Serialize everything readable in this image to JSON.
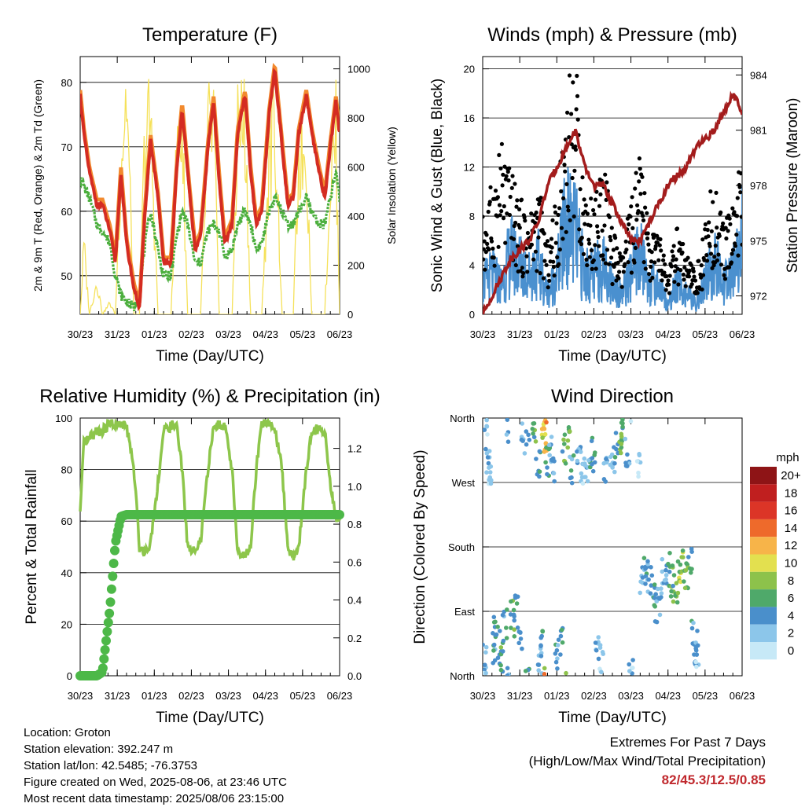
{
  "x_ticks": [
    "30/23",
    "31/23",
    "01/23",
    "02/23",
    "03/23",
    "04/23",
    "05/23",
    "06/23"
  ],
  "panels": {
    "temperature": {
      "title": "Temperature (F)",
      "xlabel": "Time (Day/UTC)",
      "ylabel": "2m & 9m T (Red, Orange) & 2m Td (Green)",
      "y2label": "Solar Insolation (Yellow)",
      "y_ticks": [
        "50",
        "60",
        "70",
        "80"
      ],
      "y2_ticks": [
        "0",
        "200",
        "400",
        "600",
        "800",
        "1000"
      ]
    },
    "winds": {
      "title": "Winds (mph) & Pressure (mb)",
      "xlabel": "Time (Day/UTC)",
      "ylabel": "Sonic Wind & Gust (Blue, Black)",
      "y2label": "Station Pressure (Maroon)",
      "y_ticks": [
        "0",
        "4",
        "8",
        "12",
        "16",
        "20"
      ],
      "y2_ticks": [
        "972",
        "975",
        "978",
        "981",
        "984"
      ]
    },
    "humidity": {
      "title": "Relative Humidity (%) & Precipitation (in)",
      "xlabel": "Time (Day/UTC)",
      "ylabel": "Percent & Total Rainfall",
      "y_ticks": [
        "0",
        "20",
        "40",
        "60",
        "80",
        "100"
      ],
      "y2_ticks": [
        "0.0",
        "0.2",
        "0.4",
        "0.6",
        "0.8",
        "1.0",
        "1.2"
      ]
    },
    "direction": {
      "title": "Wind Direction",
      "xlabel": "Time (Day/UTC)",
      "ylabel": "Direction (Colored By Speed)",
      "y_ticks": [
        "North",
        "East",
        "South",
        "West",
        "North"
      ],
      "legend_title": "mph",
      "legend_labels": [
        "0",
        "2",
        "4",
        "6",
        "8",
        "10",
        "12",
        "14",
        "16",
        "18",
        "20+"
      ],
      "legend_colors": [
        "#c7e9f7",
        "#8cc6ea",
        "#4a8fcb",
        "#4fa96a",
        "#8dc24b",
        "#e3e04f",
        "#f7b449",
        "#ee6a2b",
        "#dc3527",
        "#c01f1f",
        "#8e1416"
      ]
    }
  },
  "station": {
    "location": "Location: Groton",
    "elevation": "Station elevation: 392.247 m",
    "latlon": "Station lat/lon: 42.5485; -76.3753",
    "created": "Figure created on Wed, 2025-08-06, at 23:46 UTC",
    "recent": "Most recent data timestamp: 2025/08/06 23:15:00"
  },
  "extremes": {
    "heading": "Extremes For Past 7 Days",
    "subheading": "(High/Low/Max Wind/Total Precipitation)",
    "values": "82/45.3/12.5/0.85"
  },
  "colors": {
    "temp_2m": "#d42c22",
    "temp_9m": "#f28a2e",
    "dewpoint": "#4caf3e",
    "solar": "#f5e15a",
    "wind": "#4a90cf",
    "gust": "#000000",
    "pressure": "#a31c1c",
    "humidity": "#8dc64b",
    "rain": "#4db848"
  },
  "chart_data": [
    {
      "type": "line",
      "title": "Temperature (F)",
      "x_unit": "day (0 = 30/23 ... 7 = 06/23)",
      "x": [
        0,
        0.1,
        0.25,
        0.45,
        0.6,
        0.8,
        0.95,
        1.1,
        1.25,
        1.45,
        1.6,
        1.75,
        1.9,
        2.1,
        2.25,
        2.45,
        2.6,
        2.75,
        2.9,
        3.1,
        3.25,
        3.45,
        3.6,
        3.75,
        3.9,
        4.1,
        4.25,
        4.45,
        4.6,
        4.75,
        4.9,
        5.1,
        5.25,
        5.45,
        5.6,
        5.75,
        5.9,
        6.1,
        6.25,
        6.45,
        6.6,
        6.75,
        6.9,
        7
      ],
      "series": [
        {
          "name": "2m T",
          "values": [
            78,
            72,
            66,
            61,
            61,
            57,
            52,
            66,
            55,
            48,
            45,
            60,
            71,
            62,
            52,
            52,
            66,
            76,
            66,
            54,
            56,
            70,
            77,
            65,
            55,
            58,
            72,
            78,
            66,
            58,
            60,
            75,
            82,
            70,
            61,
            62,
            72,
            78,
            72,
            66,
            62,
            70,
            77,
            72
          ]
        },
        {
          "name": "2m Td",
          "values": [
            65,
            64,
            62,
            58,
            57,
            55,
            50,
            47,
            46,
            45,
            47,
            55,
            60,
            54,
            50,
            50,
            56,
            60,
            58,
            52,
            52,
            57,
            58,
            57,
            53,
            54,
            58,
            60,
            58,
            54,
            55,
            60,
            62,
            60,
            58,
            58,
            60,
            62,
            60,
            58,
            58,
            62,
            66,
            62
          ]
        },
        {
          "name": "Solar Insolation",
          "values": [
            0,
            300,
            0,
            150,
            0,
            50,
            0,
            700,
            1000,
            0,
            0,
            800,
            850,
            0,
            0,
            0,
            700,
            850,
            0,
            0,
            0,
            800,
            850,
            0,
            0,
            0,
            850,
            850,
            0,
            0,
            0,
            700,
            880,
            0,
            0,
            0,
            700,
            750,
            0,
            0,
            0,
            600,
            800,
            0
          ]
        }
      ],
      "ylim": [
        44,
        84
      ],
      "y2lim": [
        0,
        1050
      ]
    },
    {
      "type": "line",
      "title": "Winds (mph) & Pressure (mb)",
      "x_unit": "day (0 = 30/23 ... 7 = 06/23)",
      "x": [
        0,
        0.25,
        0.5,
        0.75,
        1,
        1.25,
        1.5,
        1.75,
        2,
        2.25,
        2.5,
        2.75,
        3,
        3.25,
        3.5,
        3.75,
        4,
        4.25,
        4.5,
        4.75,
        5,
        5.25,
        5.5,
        5.75,
        6,
        6.25,
        6.5,
        6.75,
        7
      ],
      "series": [
        {
          "name": "Sonic Wind",
          "values": [
            3,
            4,
            3,
            6,
            5,
            4,
            5,
            2,
            4,
            9,
            8,
            4,
            4,
            5,
            3,
            2,
            4,
            6,
            3,
            3,
            1,
            3,
            2,
            1,
            3,
            5,
            3,
            4,
            8
          ]
        },
        {
          "name": "Gust",
          "values": [
            7,
            9,
            12,
            10,
            8,
            7,
            9,
            5,
            8,
            16,
            18,
            9,
            8,
            11,
            6,
            4,
            8,
            11,
            6,
            6,
            3,
            6,
            4,
            3,
            6,
            10,
            6,
            8,
            13
          ]
        },
        {
          "name": "Station Pressure",
          "values": [
            971,
            972,
            973,
            974,
            974.5,
            975,
            976,
            978,
            979,
            980,
            981,
            979,
            978,
            978,
            977,
            976,
            975,
            975,
            976,
            977,
            978,
            978.5,
            979,
            980,
            980.5,
            981,
            982,
            983,
            982
          ]
        }
      ],
      "ylim": [
        0,
        21
      ],
      "y2lim": [
        971,
        985
      ]
    },
    {
      "type": "line",
      "title": "Relative Humidity (%) & Precipitation (in)",
      "x_unit": "day (0 = 30/23 ... 7 = 06/23)",
      "x": [
        0,
        0.1,
        0.25,
        0.45,
        0.6,
        0.8,
        0.95,
        1.1,
        1.25,
        1.45,
        1.6,
        1.75,
        1.9,
        2.1,
        2.25,
        2.45,
        2.6,
        2.75,
        2.9,
        3.1,
        3.25,
        3.45,
        3.6,
        3.75,
        3.9,
        4.1,
        4.25,
        4.45,
        4.6,
        4.75,
        4.9,
        5.1,
        5.25,
        5.45,
        5.6,
        5.75,
        5.9,
        6.1,
        6.25,
        6.45,
        6.6,
        6.75,
        6.9,
        7
      ],
      "series": [
        {
          "name": "Relative Humidity",
          "values": [
            63,
            90,
            92,
            95,
            95,
            98,
            97,
            97,
            97,
            80,
            50,
            48,
            52,
            75,
            95,
            97,
            97,
            80,
            50,
            48,
            52,
            80,
            97,
            98,
            97,
            80,
            48,
            46,
            50,
            80,
            98,
            98,
            96,
            80,
            50,
            46,
            50,
            80,
            95,
            96,
            95,
            75,
            60,
            62
          ]
        },
        {
          "name": "Total Rainfall",
          "values": [
            0,
            0,
            0,
            0,
            0.02,
            0.35,
            0.7,
            0.84,
            0.85,
            0.85,
            0.85,
            0.85,
            0.85,
            0.85,
            0.85,
            0.85,
            0.85,
            0.85,
            0.85,
            0.85,
            0.85,
            0.85,
            0.85,
            0.85,
            0.85,
            0.85,
            0.85,
            0.85,
            0.85,
            0.85,
            0.85,
            0.85,
            0.85,
            0.85,
            0.85,
            0.85,
            0.85,
            0.85,
            0.85,
            0.85,
            0.85,
            0.85,
            0.85,
            0.85
          ]
        }
      ],
      "ylim": [
        0,
        100
      ],
      "y2lim": [
        0,
        1.36
      ]
    },
    {
      "type": "scatter",
      "title": "Wind Direction",
      "x_unit": "day (0 = 30/23 ... 7 = 06/23)",
      "y_unit": "degrees, plotted from North(0) through East, South, West to North(360)",
      "points": [
        [
          0.05,
          20,
          2
        ],
        [
          0.1,
          340,
          2
        ],
        [
          0.15,
          300,
          3
        ],
        [
          0.2,
          280,
          2
        ],
        [
          0.3,
          40,
          4
        ],
        [
          0.35,
          60,
          5
        ],
        [
          0.45,
          50,
          6
        ],
        [
          0.5,
          30,
          5
        ],
        [
          0.6,
          70,
          4
        ],
        [
          0.7,
          350,
          3
        ],
        [
          0.8,
          80,
          6
        ],
        [
          0.9,
          100,
          5
        ],
        [
          1.0,
          60,
          4
        ],
        [
          1.1,
          330,
          3
        ],
        [
          1.2,
          345,
          4
        ],
        [
          1.4,
          340,
          6
        ],
        [
          1.5,
          300,
          5
        ],
        [
          1.55,
          20,
          3
        ],
        [
          1.6,
          40,
          4
        ],
        [
          1.65,
          350,
          10
        ],
        [
          1.68,
          340,
          12
        ],
        [
          1.7,
          335,
          11
        ],
        [
          1.75,
          300,
          5
        ],
        [
          1.8,
          310,
          4
        ],
        [
          1.9,
          290,
          3
        ],
        [
          2.0,
          30,
          4
        ],
        [
          2.1,
          50,
          5
        ],
        [
          2.2,
          320,
          6
        ],
        [
          2.3,
          340,
          8
        ],
        [
          2.4,
          290,
          4
        ],
        [
          2.6,
          300,
          3
        ],
        [
          2.7,
          290,
          2
        ],
        [
          2.8,
          280,
          3
        ],
        [
          2.9,
          300,
          4
        ],
        [
          3.0,
          310,
          6
        ],
        [
          3.1,
          40,
          3
        ],
        [
          3.2,
          30,
          2
        ],
        [
          3.3,
          290,
          3
        ],
        [
          3.5,
          300,
          2
        ],
        [
          3.6,
          320,
          4
        ],
        [
          3.7,
          330,
          7
        ],
        [
          3.8,
          340,
          6
        ],
        [
          3.9,
          310,
          3
        ],
        [
          4.0,
          20,
          2
        ],
        [
          4.2,
          290,
          2
        ],
        [
          4.3,
          130,
          3
        ],
        [
          4.4,
          150,
          4
        ],
        [
          4.5,
          140,
          3
        ],
        [
          4.6,
          120,
          4
        ],
        [
          4.7,
          100,
          4
        ],
        [
          4.8,
          110,
          3
        ],
        [
          4.9,
          140,
          3
        ],
        [
          5.0,
          150,
          5
        ],
        [
          5.1,
          130,
          6
        ],
        [
          5.2,
          120,
          7
        ],
        [
          5.3,
          140,
          8
        ],
        [
          5.4,
          150,
          8
        ],
        [
          5.5,
          145,
          7
        ],
        [
          5.6,
          155,
          6
        ],
        [
          5.7,
          60,
          4
        ],
        [
          5.75,
          40,
          3
        ],
        [
          5.8,
          30,
          2
        ]
      ],
      "legend_title": "mph",
      "ylim": [
        0,
        360
      ]
    }
  ]
}
